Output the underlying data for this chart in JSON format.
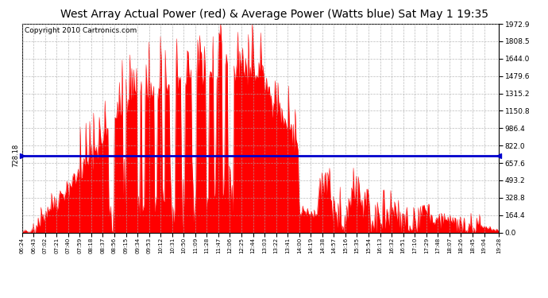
{
  "title": "West Array Actual Power (red) & Average Power (Watts blue) Sat May 1 19:35",
  "copyright": "Copyright 2010 Cartronics.com",
  "average_power": 728.18,
  "y_max": 1972.9,
  "y_min": 0.0,
  "y_ticks": [
    0.0,
    164.4,
    328.8,
    493.2,
    657.6,
    822.0,
    986.4,
    1150.8,
    1315.2,
    1479.6,
    1644.0,
    1808.5,
    1972.9
  ],
  "fill_color": "#FF0000",
  "line_color": "#0000CC",
  "background_color": "#FFFFFF",
  "grid_color": "#AAAAAA",
  "title_fontsize": 10,
  "copyright_fontsize": 6.5,
  "x_labels": [
    "06:24",
    "06:43",
    "07:02",
    "07:21",
    "07:40",
    "07:59",
    "08:18",
    "08:37",
    "08:56",
    "09:15",
    "09:34",
    "09:53",
    "10:12",
    "10:31",
    "10:50",
    "11:09",
    "11:28",
    "11:47",
    "12:06",
    "12:25",
    "12:44",
    "13:03",
    "13:22",
    "13:41",
    "14:00",
    "14:19",
    "14:38",
    "14:57",
    "15:16",
    "15:35",
    "15:54",
    "16:13",
    "16:32",
    "16:51",
    "17:10",
    "17:29",
    "17:48",
    "18:07",
    "18:26",
    "18:45",
    "19:04",
    "19:28"
  ]
}
